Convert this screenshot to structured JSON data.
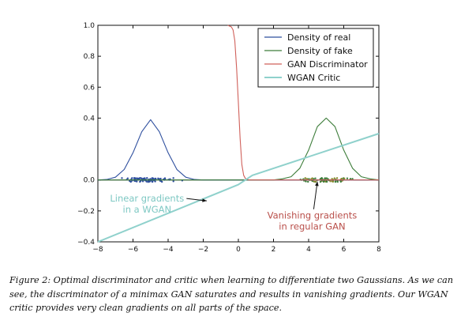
{
  "chart_data": {
    "type": "line",
    "xlim": [
      -8,
      8
    ],
    "ylim": [
      -0.4,
      1.0
    ],
    "x_ticks": [
      "−8",
      "−6",
      "−4",
      "−2",
      "0",
      "2",
      "4",
      "6",
      "8"
    ],
    "y_ticks": [
      "−0.4",
      "−0.2",
      "0.0",
      "0.4",
      "0.6",
      "0.8",
      "1.0"
    ],
    "y_tick_values": [
      -0.4,
      -0.2,
      0.0,
      0.4,
      0.6,
      0.8,
      1.0
    ],
    "grid": false,
    "legend_position": "top-right",
    "series": [
      {
        "name": "Density of real",
        "color": "#2e4f9e",
        "x": [
          -8,
          -7.5,
          -7,
          -6.5,
          -6,
          -5.5,
          -5,
          -4.5,
          -4,
          -3.5,
          -3,
          -2.5,
          -2,
          -1,
          0,
          2,
          4,
          6,
          8
        ],
        "values": [
          0.0,
          0.003,
          0.018,
          0.068,
          0.176,
          0.312,
          0.39,
          0.312,
          0.176,
          0.068,
          0.018,
          0.003,
          0.0,
          0.0,
          0.0,
          0.0,
          0.0,
          0.0,
          0.0
        ]
      },
      {
        "name": "Density of fake",
        "color": "#3d7d3a",
        "x": [
          -8,
          -4,
          0,
          1,
          2,
          2.5,
          3,
          3.5,
          4,
          4.5,
          5,
          5.5,
          6,
          6.5,
          7,
          7.5,
          8
        ],
        "values": [
          0.0,
          0.0,
          0.0,
          0.0,
          0.0,
          0.007,
          0.021,
          0.076,
          0.193,
          0.345,
          0.4,
          0.345,
          0.193,
          0.076,
          0.021,
          0.007,
          0.0
        ]
      },
      {
        "name": "GAN Discriminator",
        "color": "#d0605a",
        "x": [
          -0.6,
          -0.4,
          -0.3,
          -0.2,
          -0.1,
          0.0,
          0.1,
          0.2,
          0.3,
          0.4,
          0.6,
          1,
          2,
          4,
          6,
          8
        ],
        "values": [
          1.0,
          0.99,
          0.97,
          0.9,
          0.72,
          0.5,
          0.27,
          0.1,
          0.03,
          0.01,
          0.0,
          0.0,
          0.0,
          0.0,
          0.0,
          0.0
        ]
      },
      {
        "name": "WGAN Critic",
        "color": "#8fd1cc",
        "x": [
          -8,
          0,
          0.8,
          8
        ],
        "values": [
          -0.4,
          -0.03,
          0.03,
          0.3
        ]
      }
    ],
    "annotations": [
      {
        "lines": [
          "Linear gradients",
          "in a WGAN"
        ],
        "color": "#7ec8c3",
        "x": -5.2,
        "y": -0.14,
        "arrow_to": [
          -1.8,
          -0.135
        ]
      },
      {
        "lines": [
          "Vanishing gradients",
          "in regular GAN"
        ],
        "color": "#b94f4a",
        "x": 4.2,
        "y": -0.25,
        "arrow_to": [
          4.5,
          -0.01
        ]
      }
    ]
  },
  "caption": "Figure 2: Optimal discriminator and critic when learning to differentiate two Gaussians. As we can see, the discriminator of a minimax GAN saturates and results in vanishing gradients. Our WGAN critic provides very clean gradients on all parts of the space."
}
